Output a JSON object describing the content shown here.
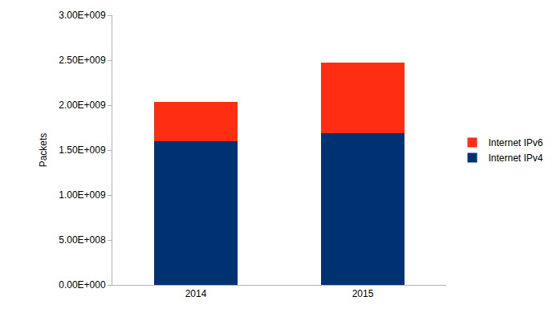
{
  "chart_data": {
    "type": "bar",
    "stacked": true,
    "grid": false,
    "legend": "right",
    "y_label": "Packets",
    "categories": [
      "2014",
      "2015"
    ],
    "series": [
      {
        "name": "Internet IPv4",
        "color": "#003272",
        "values": [
          1600000000,
          1690000000
        ]
      },
      {
        "name": "Internet IPv6",
        "color": "#ff2d12",
        "values": [
          440000000,
          780000000
        ]
      }
    ],
    "ylim": [
      0,
      3000000000
    ],
    "yticks": [
      {
        "value": 0,
        "label": "0.00E+000"
      },
      {
        "value": 500000000,
        "label": "5.00E+008"
      },
      {
        "value": 1000000000,
        "label": "1.00E+009"
      },
      {
        "value": 1500000000,
        "label": "1.50E+009"
      },
      {
        "value": 2000000000,
        "label": "2.00E+009"
      },
      {
        "value": 2500000000,
        "label": "2.50E+009"
      },
      {
        "value": 3000000000,
        "label": "3.00E+009"
      }
    ]
  }
}
